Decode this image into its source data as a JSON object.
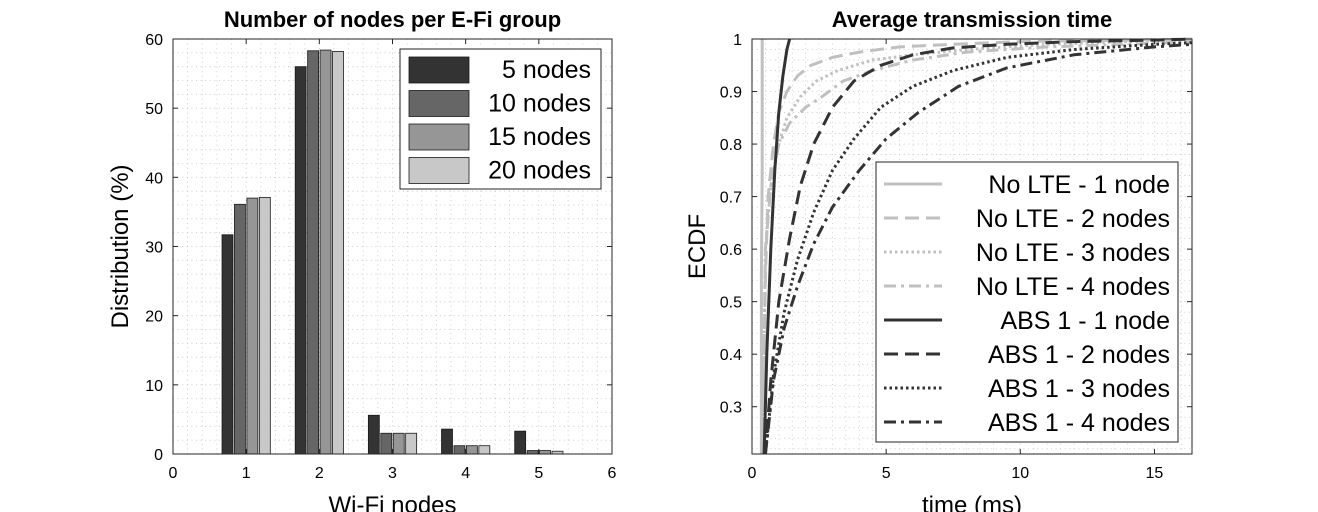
{
  "chart_data": [
    {
      "type": "bar",
      "title": "Number of nodes per E-Fi group",
      "xlabel": "Wi-Fi nodes",
      "ylabel": "Distribution (%)",
      "xlim": [
        0,
        6
      ],
      "ylim": [
        0,
        60
      ],
      "xticks": [
        "0",
        "1",
        "2",
        "3",
        "4",
        "5",
        "6"
      ],
      "yticks": [
        "0",
        "10",
        "20",
        "30",
        "40",
        "50",
        "60"
      ],
      "grid": "dotted minor",
      "legend_position": "top-right",
      "categories": [
        1,
        2,
        3,
        4,
        5
      ],
      "colors": [
        "#333333",
        "#666666",
        "#969696",
        "#c8c8c8"
      ],
      "series": [
        {
          "name": "5 nodes",
          "values": [
            31.7,
            56.0,
            5.6,
            3.6,
            3.3
          ]
        },
        {
          "name": "10 nodes",
          "values": [
            36.1,
            58.3,
            3.0,
            1.2,
            0.5
          ]
        },
        {
          "name": "15 nodes",
          "values": [
            37.0,
            58.4,
            3.0,
            1.2,
            0.5
          ]
        },
        {
          "name": "20 nodes",
          "values": [
            37.1,
            58.2,
            3.0,
            1.2,
            0.4
          ]
        }
      ]
    },
    {
      "type": "line",
      "title": "Average transmission time",
      "xlabel": "time (ms)",
      "ylabel": "ECDF",
      "xlim": [
        0,
        16.4
      ],
      "ylim": [
        0.21,
        1.0
      ],
      "xticks": [
        "0",
        "5",
        "10",
        "15"
      ],
      "yticks": [
        "0.3",
        "0.4",
        "0.5",
        "0.6",
        "0.7",
        "0.8",
        "0.9",
        "1"
      ],
      "grid": "dotted minor",
      "legend_position": "bottom-right",
      "series": [
        {
          "name": "No LTE - 1 node",
          "color": "#c0c0c0",
          "style": "solid",
          "x": [
            0.35,
            0.35,
            0.38,
            0.38
          ],
          "y": [
            0.21,
            0.55,
            0.75,
            1.0
          ]
        },
        {
          "name": "No LTE - 2 nodes",
          "color": "#c0c0c0",
          "style": "dashed",
          "x": [
            0.4,
            0.5,
            0.6,
            0.8,
            1.0,
            1.3,
            1.7,
            2.2,
            3.0,
            4.0,
            5.5,
            7.5,
            10.0,
            14.0,
            16.4
          ],
          "y": [
            0.21,
            0.55,
            0.7,
            0.8,
            0.86,
            0.9,
            0.93,
            0.95,
            0.965,
            0.975,
            0.985,
            0.99,
            0.995,
            0.998,
            1.0
          ]
        },
        {
          "name": "No LTE - 3 nodes",
          "color": "#c0c0c0",
          "style": "dotted",
          "x": [
            0.4,
            0.5,
            0.7,
            1.0,
            1.3,
            1.8,
            2.4,
            3.2,
            4.5,
            6.0,
            8.0,
            11.0,
            14.0,
            16.4
          ],
          "y": [
            0.21,
            0.6,
            0.72,
            0.8,
            0.85,
            0.89,
            0.92,
            0.94,
            0.96,
            0.97,
            0.98,
            0.99,
            0.995,
            0.998
          ]
        },
        {
          "name": "No LTE - 4 nodes",
          "color": "#c0c0c0",
          "style": "dashdot",
          "x": [
            0.4,
            0.5,
            0.7,
            1.0,
            1.4,
            2.0,
            2.6,
            3.4,
            4.5,
            6.0,
            8.0,
            11.0,
            14.0,
            16.4
          ],
          "y": [
            0.21,
            0.6,
            0.72,
            0.8,
            0.84,
            0.87,
            0.89,
            0.92,
            0.94,
            0.96,
            0.975,
            0.985,
            0.99,
            0.995
          ]
        },
        {
          "name": "ABS 1 - 1 node",
          "color": "#333333",
          "style": "solid",
          "x": [
            0.45,
            0.55,
            0.7,
            0.85,
            1.0,
            1.15,
            1.3,
            1.4
          ],
          "y": [
            0.21,
            0.4,
            0.6,
            0.75,
            0.86,
            0.93,
            0.98,
            1.0
          ]
        },
        {
          "name": "ABS 1 - 2 nodes",
          "color": "#333333",
          "style": "dashed",
          "x": [
            0.5,
            0.7,
            1.0,
            1.4,
            1.8,
            2.3,
            3.0,
            3.8,
            4.8,
            6.0,
            7.5,
            9.5,
            12.0,
            15.0,
            16.4
          ],
          "y": [
            0.21,
            0.35,
            0.5,
            0.62,
            0.72,
            0.8,
            0.87,
            0.92,
            0.95,
            0.97,
            0.983,
            0.99,
            0.995,
            0.998,
            1.0
          ]
        },
        {
          "name": "ABS 1 - 3 nodes",
          "color": "#333333",
          "style": "dotted",
          "x": [
            0.5,
            0.8,
            1.2,
            1.7,
            2.3,
            3.0,
            3.8,
            4.8,
            6.0,
            7.5,
            9.5,
            12.0,
            15.0,
            16.4
          ],
          "y": [
            0.21,
            0.36,
            0.48,
            0.58,
            0.67,
            0.75,
            0.81,
            0.87,
            0.91,
            0.94,
            0.965,
            0.98,
            0.99,
            0.993
          ]
        },
        {
          "name": "ABS 1 - 4 nodes",
          "color": "#333333",
          "style": "dashdot",
          "x": [
            0.5,
            0.8,
            1.2,
            1.7,
            2.3,
            3.0,
            4.0,
            5.0,
            6.2,
            7.7,
            9.5,
            12.0,
            15.0,
            16.4
          ],
          "y": [
            0.21,
            0.35,
            0.45,
            0.53,
            0.61,
            0.68,
            0.75,
            0.81,
            0.86,
            0.91,
            0.945,
            0.97,
            0.985,
            0.99
          ]
        }
      ]
    }
  ]
}
